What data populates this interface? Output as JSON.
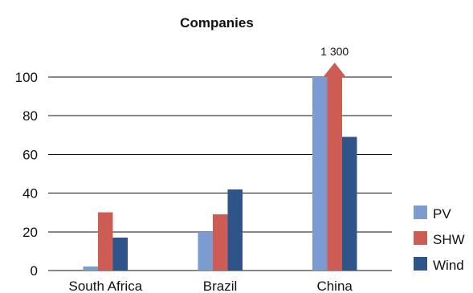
{
  "chart_data": {
    "type": "bar",
    "title": "Companies",
    "categories": [
      "South Africa",
      "Brazil",
      "China"
    ],
    "series": [
      {
        "name": "PV",
        "values": [
          2,
          20,
          100
        ],
        "color": "#7b9bd1"
      },
      {
        "name": "SHW",
        "values": [
          30,
          29,
          100
        ],
        "color": "#cd5c55"
      },
      {
        "name": "Wind",
        "values": [
          17,
          42,
          69
        ],
        "color": "#2f548a"
      }
    ],
    "ylim": [
      0,
      100
    ],
    "yticks": [
      0,
      20,
      40,
      60,
      80,
      100
    ],
    "gridlines": true,
    "legend_position": "right",
    "annotations": [
      {
        "category": "China",
        "series": "SHW",
        "text": "1 300",
        "marker": "up-arrow"
      }
    ]
  }
}
